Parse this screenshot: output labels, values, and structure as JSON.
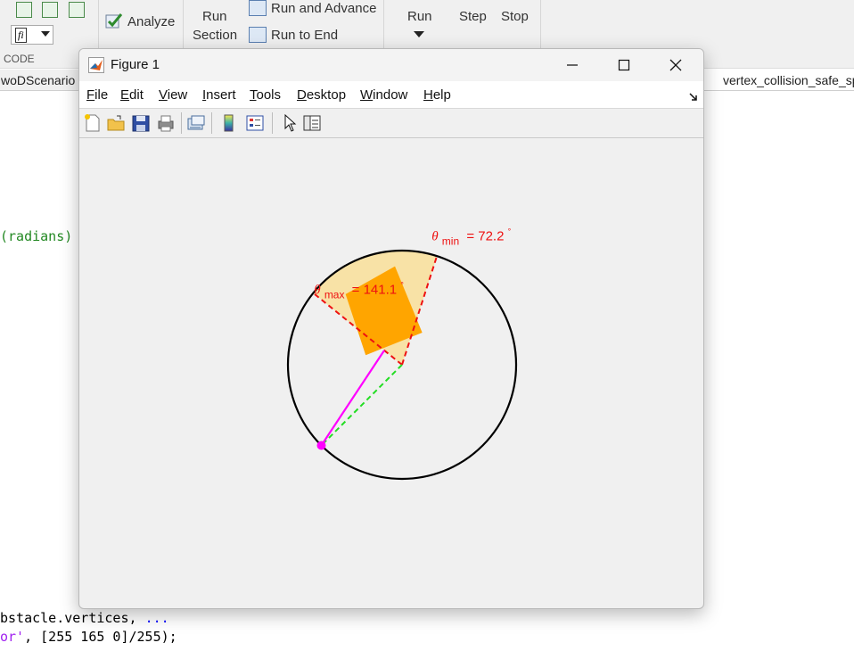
{
  "toolstrip": {
    "analyze_label": "Analyze",
    "run_section_line1": "Run",
    "run_section_line2": "Section",
    "run_and_advance_label": "Run and Advance",
    "run_to_end_label": "Run to End",
    "run_label": "Run",
    "step_label": "Step",
    "stop_label": "Stop",
    "section_code_label": "CODE"
  },
  "editor": {
    "left_tab_label": "woDScenario",
    "right_tab_label": "vertex_collision_safe_sp",
    "code_fragment_radians": "(radians)",
    "code_line_1_text": "bstacle.vertices, ",
    "code_line_1_ellipsis": "...",
    "code_line_2_string": "or'",
    "code_line_2_rest": ", [255 165 0]/255);"
  },
  "figure_window": {
    "title": "Figure 1",
    "menu": [
      "File",
      "Edit",
      "View",
      "Insert",
      "Tools",
      "Desktop",
      "Window",
      "Help"
    ],
    "menu_underline_index": [
      0,
      0,
      0,
      0,
      0,
      0,
      0,
      0
    ]
  },
  "plot": {
    "theta_symbol": "θ",
    "theta_min_sub": "min",
    "theta_min_value": "= 72.2",
    "theta_max_sub": "max",
    "theta_max_value": "= 141.1",
    "degree_symbol": "°",
    "theta_min_deg": 72.2,
    "theta_max_deg": 141.1,
    "colors": {
      "circle": "#000000",
      "sector_fill": "#f8e2a6",
      "obstacle_fill": "#ffa500",
      "boundary_lines": "#ee1111",
      "link_line": "#ff00ff",
      "dashed_line": "#22dd22",
      "label_text": "#ee1111"
    }
  }
}
